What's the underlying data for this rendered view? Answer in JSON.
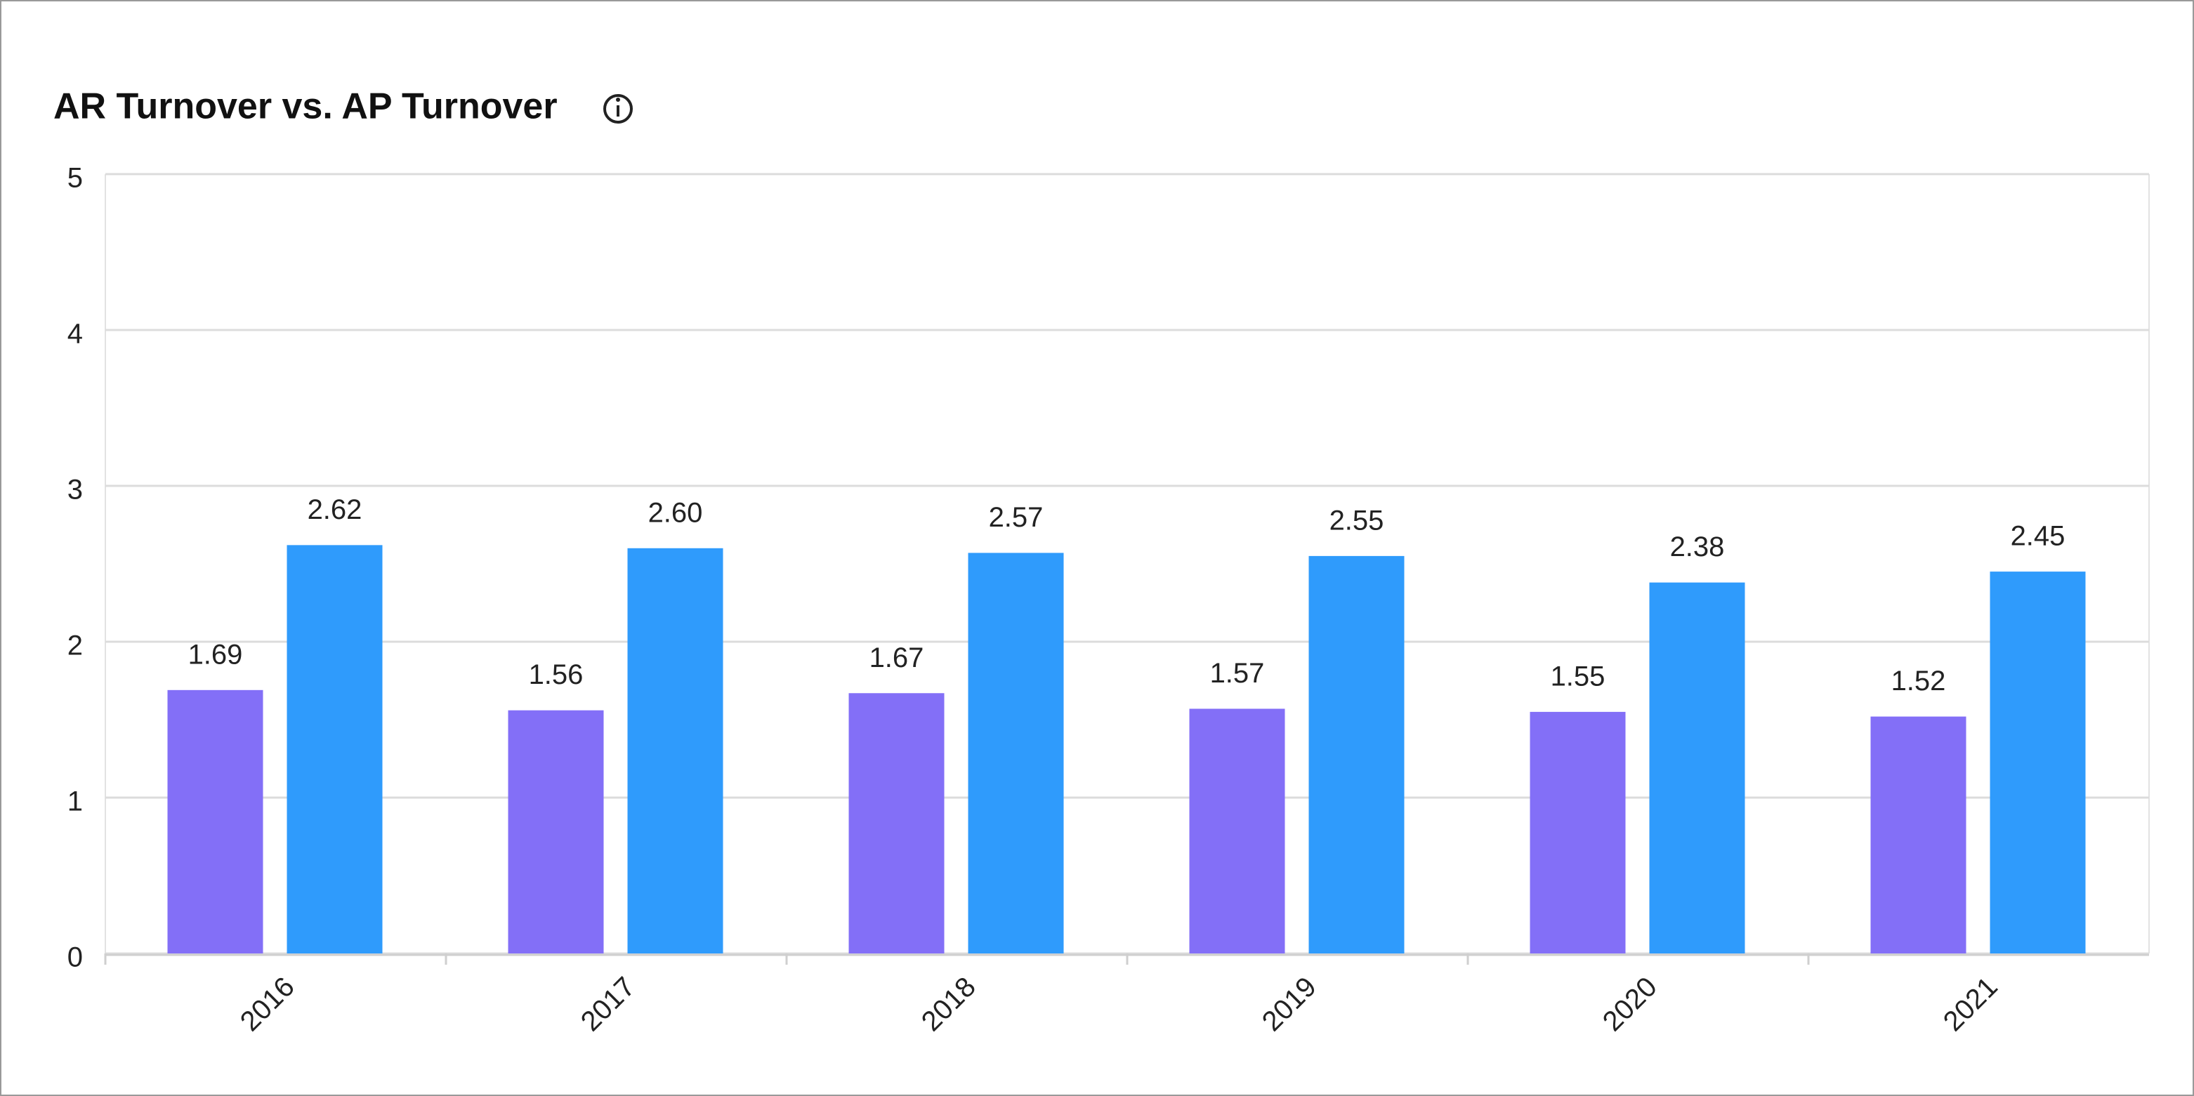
{
  "chart_data": {
    "type": "bar",
    "title": "AR Turnover vs. AP Turnover",
    "categories": [
      "2016",
      "2017",
      "2018",
      "2019",
      "2020",
      "2021"
    ],
    "series": [
      {
        "color": "#836ff7",
        "values": [
          1.69,
          1.56,
          1.67,
          1.57,
          1.55,
          1.52
        ],
        "value_labels": [
          "1.69",
          "1.56",
          "1.67",
          "1.57",
          "1.55",
          "1.52"
        ]
      },
      {
        "color": "#2f9bfc",
        "values": [
          2.62,
          2.6,
          2.57,
          2.55,
          2.38,
          2.45
        ],
        "value_labels": [
          "2.62",
          "2.60",
          "2.57",
          "2.55",
          "2.38",
          "2.45"
        ]
      }
    ],
    "ylim": [
      0,
      5
    ],
    "yticks": [
      0,
      1,
      2,
      3,
      4,
      5
    ],
    "grid": true
  }
}
